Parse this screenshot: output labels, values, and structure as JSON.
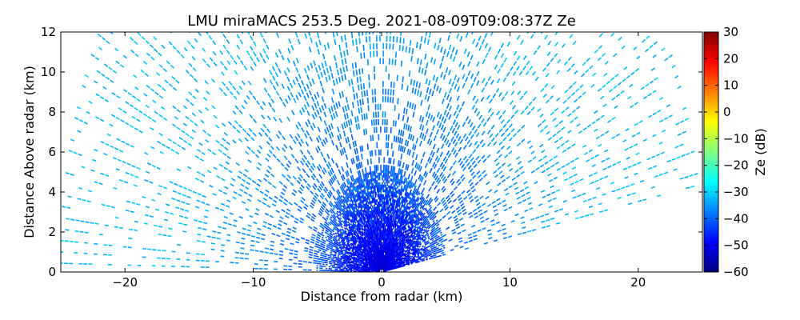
{
  "chart_data": {
    "type": "heatmap",
    "title": "LMU miraMACS 253.5 Deg. 2021-08-09T09:08:37Z  Ze",
    "xlabel": "Distance from radar (km)",
    "ylabel": "Distance Above radar  (km)",
    "xlim": [
      -25,
      25
    ],
    "ylim": [
      0,
      12
    ],
    "x_ticks": [
      -20,
      -10,
      0,
      10,
      20
    ],
    "x_tick_labels": [
      "−20",
      "−10",
      "0",
      "10",
      "20"
    ],
    "y_ticks": [
      0,
      2,
      4,
      6,
      8,
      10,
      12
    ],
    "y_tick_labels": [
      "0",
      "2",
      "4",
      "6",
      "8",
      "10",
      "12"
    ],
    "scan": {
      "azimuth_deg": 253.5,
      "elevation_range_deg": [
        10,
        180
      ],
      "max_range_km": 25,
      "near_field_range_km": 5,
      "near_field_ze_dB": [
        -60,
        -40
      ],
      "far_field_ze_dB": [
        -32,
        -28
      ]
    },
    "colorbar": {
      "label": "Ze (dB)",
      "min": -60,
      "max": 30,
      "ticks": [
        30,
        20,
        10,
        0,
        -10,
        -20,
        -30,
        -40,
        -50,
        -60
      ],
      "tick_labels": [
        "30",
        "20",
        "10",
        "0",
        "−10",
        "−20",
        "−30",
        "−40",
        "−50",
        "−60"
      ],
      "colormap": "jet",
      "colors": [
        "#00007f",
        "#0000ff",
        "#007fff",
        "#00ffff",
        "#7fff7f",
        "#ffff00",
        "#ff7f00",
        "#ff0000",
        "#7f0000"
      ]
    }
  }
}
